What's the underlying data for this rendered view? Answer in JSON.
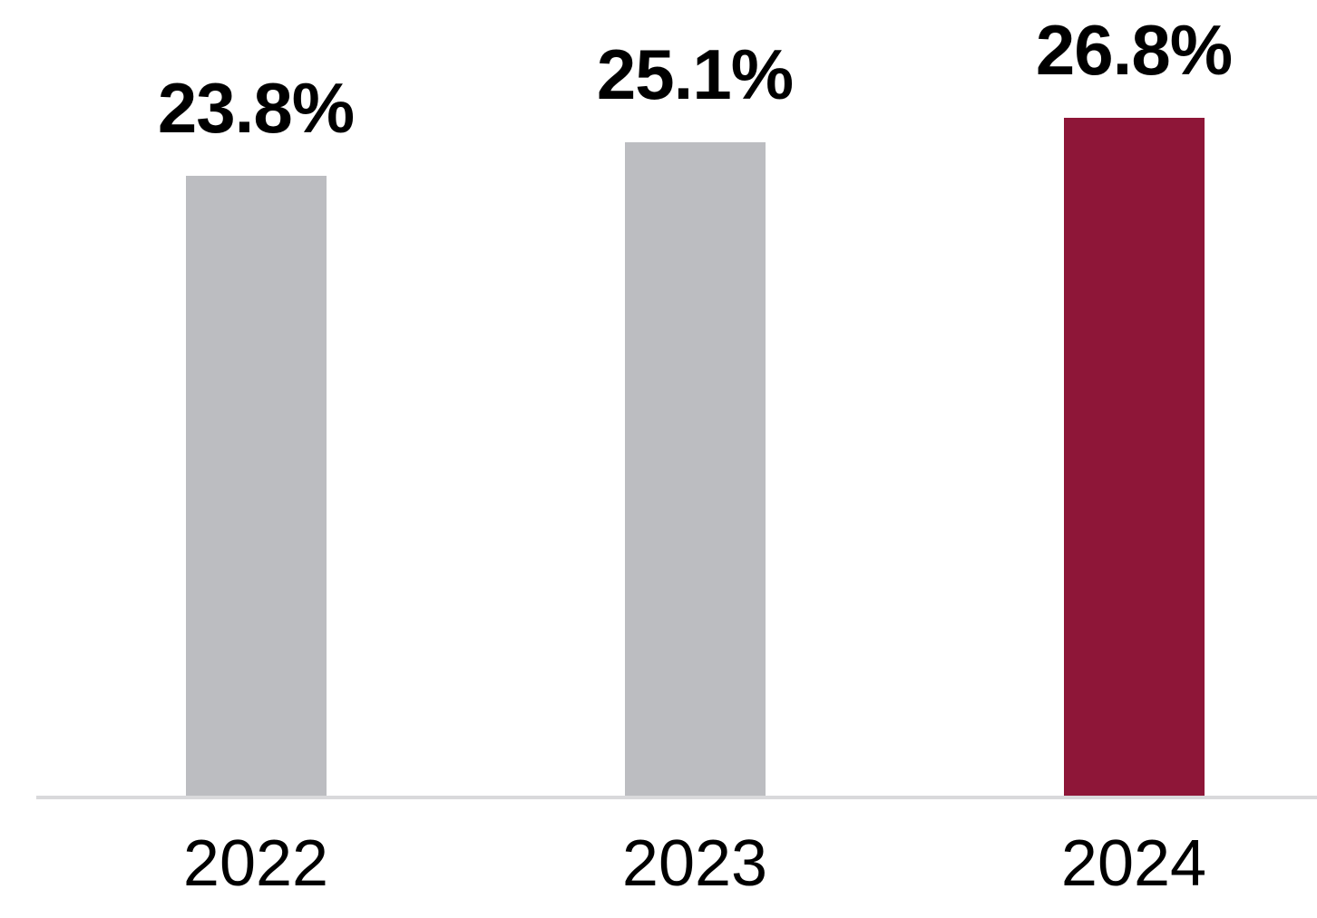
{
  "chart_data": {
    "type": "bar",
    "categories": [
      "2022",
      "2023",
      "2024"
    ],
    "values": [
      23.8,
      25.1,
      26.8
    ],
    "value_labels": [
      "23.8%",
      "25.1%",
      "26.8%"
    ],
    "title": "",
    "xlabel": "",
    "ylabel": "",
    "ylim": [
      0,
      30
    ],
    "grid": false,
    "legend": "none",
    "highlight_index": 2,
    "colors": {
      "bar_default": "#bcbdc1",
      "bar_highlight": "#8e1638",
      "value_label_text": "#000000",
      "axis_label_text": "#000000",
      "axis_line": "#d9d9db",
      "background": "#ffffff"
    }
  }
}
